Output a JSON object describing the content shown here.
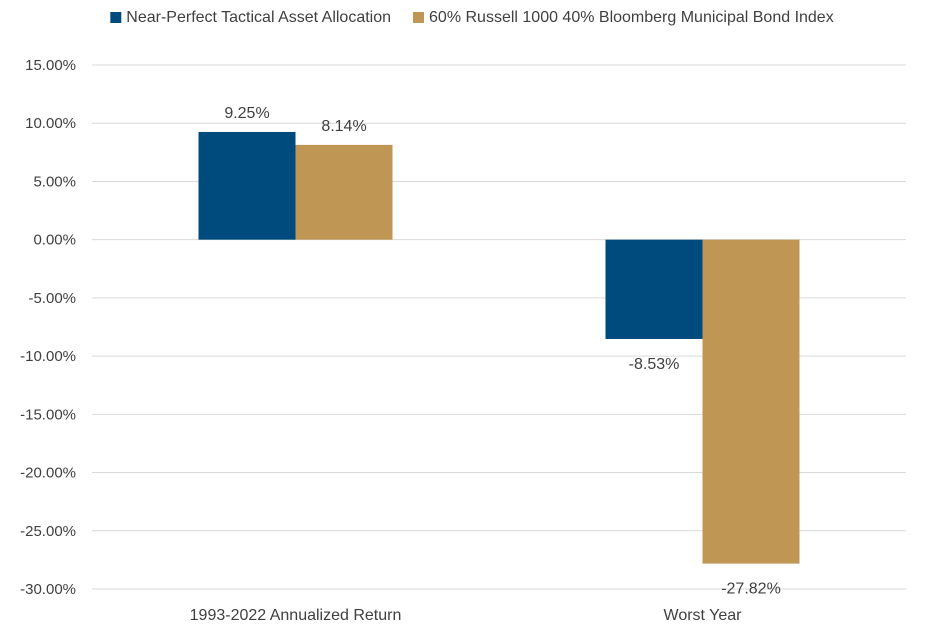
{
  "chart_data": {
    "type": "bar",
    "categories": [
      "1993-2022 Annualized Return",
      "Worst Year"
    ],
    "series": [
      {
        "name": "Near-Perfect Tactical Asset Allocation",
        "values": [
          9.25,
          -8.53
        ],
        "labels": [
          "9.25%",
          "-8.53%"
        ],
        "color": "#004b7d"
      },
      {
        "name": "60% Russell 1000 40% Bloomberg Municipal Bond Index",
        "values": [
          8.14,
          -27.82
        ],
        "labels": [
          "8.14%",
          "-27.82%"
        ],
        "color": "#bf9653"
      }
    ],
    "yticks": [
      15,
      10,
      5,
      0,
      -5,
      -10,
      -15,
      -20,
      -25,
      -30
    ],
    "ytick_labels": [
      "15.00%",
      "10.00%",
      "5.00%",
      "0.00%",
      "-5.00%",
      "-10.00%",
      "-15.00%",
      "-20.00%",
      "-25.00%",
      "-30.00%"
    ],
    "ylim": [
      -30,
      15
    ],
    "grid": true,
    "legend_position": "top",
    "title": "",
    "xlabel": "",
    "ylabel": ""
  }
}
